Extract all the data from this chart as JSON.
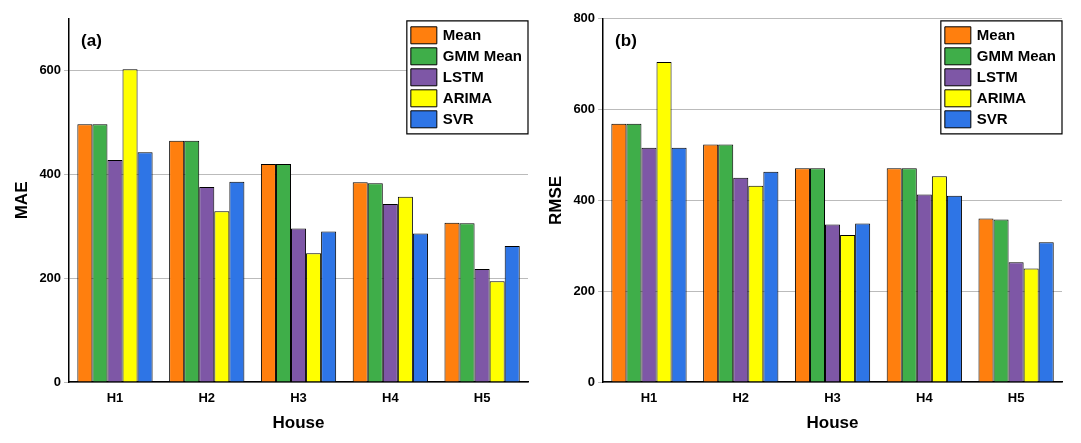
{
  "chart_data": [
    {
      "type": "bar",
      "categories": [
        "H1",
        "H2",
        "H3",
        "H4",
        "H5"
      ],
      "xlabel": "House",
      "ylabel": "MAE",
      "ylim": [
        0,
        700
      ],
      "yticks": [
        0,
        200,
        400,
        600
      ],
      "grid": "y",
      "legend": "top right",
      "annotations": [
        "(a)"
      ],
      "series": [
        {
          "name": "Mean",
          "color": "#ff7f0e",
          "values": [
            497,
            465,
            420,
            385,
            307
          ]
        },
        {
          "name": "GMM Mean",
          "color": "#3fae49",
          "values": [
            497,
            465,
            420,
            383,
            306
          ]
        },
        {
          "name": "LSTM",
          "color": "#7e57a6",
          "values": [
            428,
            376,
            296,
            343,
            218
          ]
        },
        {
          "name": "ARIMA",
          "color": "#ffff00",
          "values": [
            603,
            329,
            248,
            357,
            194
          ]
        },
        {
          "name": "SVR",
          "color": "#2e75e6",
          "values": [
            443,
            386,
            290,
            286,
            262
          ]
        }
      ]
    },
    {
      "type": "bar",
      "categories": [
        "H1",
        "H2",
        "H3",
        "H4",
        "H5"
      ],
      "xlabel": "House",
      "ylabel": "RMSE",
      "ylim": [
        0,
        800
      ],
      "yticks": [
        0,
        200,
        400,
        600,
        800
      ],
      "grid": "y",
      "legend": "top right",
      "annotations": [
        "(b)"
      ],
      "series": [
        {
          "name": "Mean",
          "color": "#ff7f0e",
          "values": [
            569,
            523,
            471,
            471,
            360
          ]
        },
        {
          "name": "GMM Mean",
          "color": "#3fae49",
          "values": [
            569,
            523,
            471,
            471,
            358
          ]
        },
        {
          "name": "LSTM",
          "color": "#7e57a6",
          "values": [
            516,
            450,
            347,
            413,
            264
          ]
        },
        {
          "name": "ARIMA",
          "color": "#ffff00",
          "values": [
            705,
            432,
            324,
            453,
            250
          ]
        },
        {
          "name": "SVR",
          "color": "#2e75e6",
          "values": [
            516,
            463,
            349,
            410,
            308
          ]
        }
      ]
    }
  ]
}
